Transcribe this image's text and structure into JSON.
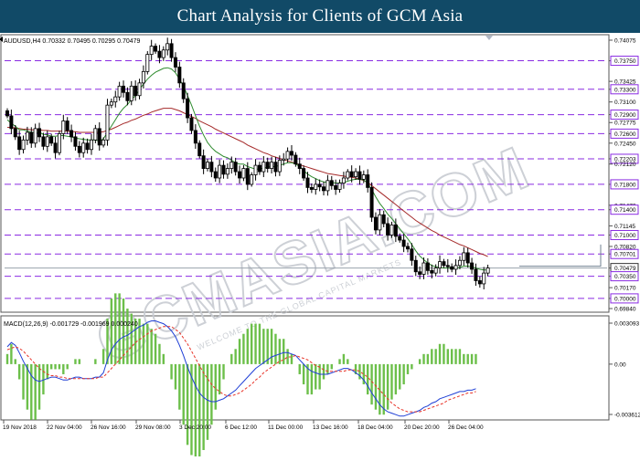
{
  "banner": {
    "title": "Chart Analysis for Clients of GCM Asia"
  },
  "watermark": {
    "text": "GCMASIA.COM",
    "subtext": "WELCOME TO THE GLOBAL CAPITAL MARKETS"
  },
  "chart_data": [
    {
      "type": "candlestick",
      "symbol_header": "AUDUSD,H4  0.70332 0.70495 0.70295 0.70479",
      "ylim": [
        0.6984,
        0.74075
      ],
      "y_tick_labels": [
        "0.74075",
        "0.73750",
        "0.73425",
        "0.73300",
        "0.73100",
        "0.72900",
        "0.72775",
        "0.72600",
        "0.72450",
        "0.72203",
        "0.72120",
        "0.71800",
        "0.71470",
        "0.71400",
        "0.71145",
        "0.71000",
        "0.70820",
        "0.70701",
        "0.70479",
        "0.70350",
        "0.70170",
        "0.70000",
        "0.69840"
      ],
      "highlight_levels": [
        0.7375,
        0.733,
        0.729,
        0.726,
        0.72203,
        0.718,
        0.714,
        0.71,
        0.70701,
        0.7035,
        0.7
      ],
      "current_price": 0.70479,
      "x_tick_labels": [
        "19 Nov 2018",
        "22 Nov 04:00",
        "26 Nov 16:00",
        "29 Nov 08:00",
        "3 Dec 20:00",
        "6 Dec 12:00",
        "11 Dec 00:00",
        "13 Dec 16:00",
        "18 Dec 04:00",
        "20 Dec 20:00",
        "26 Dec 04:00"
      ],
      "close_path": [
        0.7288,
        0.7268,
        0.7255,
        0.7235,
        0.725,
        0.7262,
        0.7245,
        0.7268,
        0.7255,
        0.724,
        0.7255,
        0.7245,
        0.723,
        0.726,
        0.728,
        0.7265,
        0.7255,
        0.724,
        0.723,
        0.7245,
        0.7235,
        0.725,
        0.7268,
        0.7242,
        0.725,
        0.7305,
        0.731,
        0.7318,
        0.7335,
        0.7325,
        0.7312,
        0.7335,
        0.732,
        0.734,
        0.7358,
        0.7385,
        0.7398,
        0.739,
        0.738,
        0.7392,
        0.7402,
        0.738,
        0.7365,
        0.734,
        0.7315,
        0.7285,
        0.7265,
        0.7245,
        0.7225,
        0.7205,
        0.7215,
        0.72,
        0.719,
        0.721,
        0.7196,
        0.7205,
        0.7215,
        0.72,
        0.719,
        0.7205,
        0.718,
        0.7195,
        0.721,
        0.72,
        0.7215,
        0.7205,
        0.7215,
        0.72,
        0.7218,
        0.722,
        0.7232,
        0.7226,
        0.7212,
        0.7205,
        0.719,
        0.7175,
        0.7172,
        0.718,
        0.7176,
        0.717,
        0.7186,
        0.7178,
        0.7172,
        0.7182,
        0.719,
        0.72,
        0.7192,
        0.72,
        0.7188,
        0.7195,
        0.7175,
        0.7128,
        0.7108,
        0.7132,
        0.7118,
        0.71,
        0.7116,
        0.7098,
        0.7092,
        0.7082,
        0.7078,
        0.706,
        0.7042,
        0.7038,
        0.7056,
        0.7044,
        0.704,
        0.7048,
        0.7058,
        0.7052,
        0.705,
        0.7046,
        0.7052,
        0.706,
        0.7072,
        0.7056,
        0.7046,
        0.7028,
        0.7023,
        0.704,
        0.7048
      ],
      "ma_fast": [
        0.7282,
        0.7276,
        0.7272,
        0.7266,
        0.7266,
        0.7264,
        0.7262,
        0.7262,
        0.7262,
        0.7259,
        0.7258,
        0.7256,
        0.7256,
        0.7257,
        0.7257,
        0.7256,
        0.7255,
        0.7253,
        0.7252,
        0.7251,
        0.725,
        0.725,
        0.725,
        0.7248,
        0.7252,
        0.7262,
        0.7272,
        0.7282,
        0.7292,
        0.73,
        0.7306,
        0.7314,
        0.732,
        0.733,
        0.7338,
        0.7346,
        0.7352,
        0.7357,
        0.736,
        0.7363,
        0.7364,
        0.7362,
        0.7356,
        0.7346,
        0.7335,
        0.732,
        0.7305,
        0.7288,
        0.7272,
        0.7258,
        0.7246,
        0.7238,
        0.7232,
        0.7228,
        0.7224,
        0.7222,
        0.7218,
        0.7214,
        0.7212,
        0.7212,
        0.7208,
        0.7206,
        0.7204,
        0.7204,
        0.7206,
        0.7207,
        0.7208,
        0.7208,
        0.721,
        0.7212,
        0.7214,
        0.7214,
        0.7212,
        0.7208,
        0.7202,
        0.7196,
        0.7192,
        0.7189,
        0.7186,
        0.7184,
        0.7183,
        0.7183,
        0.7182,
        0.7182,
        0.7183,
        0.7185,
        0.7187,
        0.7188,
        0.7188,
        0.7187,
        0.7182,
        0.7172,
        0.716,
        0.715,
        0.7142,
        0.7133,
        0.7126,
        0.7118,
        0.711,
        0.7102,
        0.7094,
        0.7085,
        0.7075,
        0.7067,
        0.7061,
        0.7056,
        0.7052,
        0.705,
        0.7049,
        0.7048,
        0.7048,
        0.7048,
        0.7048,
        0.7049,
        0.7051,
        0.7051,
        0.705,
        0.7048,
        0.7046,
        0.7045,
        0.7045
      ],
      "ma_slow": [
        0.727,
        0.727,
        0.7269,
        0.7268,
        0.7267,
        0.7267,
        0.7266,
        0.7266,
        0.7266,
        0.7265,
        0.7265,
        0.7264,
        0.7264,
        0.7264,
        0.7264,
        0.7264,
        0.7263,
        0.7263,
        0.7262,
        0.7262,
        0.7262,
        0.7262,
        0.7262,
        0.7262,
        0.7263,
        0.7265,
        0.7267,
        0.727,
        0.7273,
        0.7276,
        0.7278,
        0.7281,
        0.7283,
        0.7286,
        0.7289,
        0.7291,
        0.7294,
        0.7296,
        0.7298,
        0.73,
        0.73,
        0.73,
        0.7298,
        0.7296,
        0.7293,
        0.729,
        0.7287,
        0.7284,
        0.728,
        0.7277,
        0.7274,
        0.7271,
        0.7267,
        0.7264,
        0.7261,
        0.7258,
        0.7255,
        0.7252,
        0.7249,
        0.7246,
        0.7242,
        0.7239,
        0.7236,
        0.7233,
        0.723,
        0.7228,
        0.7225,
        0.7223,
        0.7221,
        0.7219,
        0.7217,
        0.7215,
        0.7213,
        0.7211,
        0.7209,
        0.7207,
        0.7205,
        0.7203,
        0.7201,
        0.7199,
        0.7197,
        0.7196,
        0.7195,
        0.7194,
        0.7193,
        0.7192,
        0.7191,
        0.719,
        0.7188,
        0.7186,
        0.7183,
        0.7178,
        0.7173,
        0.7168,
        0.7163,
        0.7158,
        0.7153,
        0.7148,
        0.7143,
        0.7138,
        0.7133,
        0.7128,
        0.7123,
        0.7119,
        0.7115,
        0.7111,
        0.7107,
        0.7104,
        0.71,
        0.7097,
        0.7094,
        0.7091,
        0.7088,
        0.7085,
        0.7083,
        0.708,
        0.7077,
        0.7074,
        0.7071,
        0.7069,
        0.7066
      ],
      "trendline": {
        "x_start": "26 Dec 04:00",
        "level_start": 0.70479,
        "level_end": 0.70479,
        "rise_to": 0.7085
      }
    },
    {
      "type": "macd",
      "label": "MACD(12,26,9) -0.001729 -0.001969 0.000240",
      "ylim": [
        -0.003612,
        0.003093
      ],
      "y_tick_labels": [
        "0.003093",
        "0.00",
        "-0.003612"
      ],
      "macd": [
        0.0012,
        0.0015,
        0.0013,
        0.0008,
        0.0002,
        -0.0003,
        -0.0008,
        -0.0011,
        -0.0012,
        -0.0011,
        -0.001,
        -0.0009,
        -0.0009,
        -0.001,
        -0.0011,
        -0.0011,
        -0.001,
        -0.0009,
        -0.0009,
        -0.001,
        -0.001,
        -0.001,
        -0.0009,
        -0.0009,
        -0.0006,
        0.0003,
        0.001,
        0.0014,
        0.0017,
        0.0019,
        0.002,
        0.0022,
        0.0024,
        0.0026,
        0.0027,
        0.0029,
        0.003,
        0.003,
        0.0029,
        0.0028,
        0.0026,
        0.0023,
        0.0019,
        0.0013,
        0.0006,
        -0.0002,
        -0.0009,
        -0.0015,
        -0.002,
        -0.0023,
        -0.0025,
        -0.0026,
        -0.0026,
        -0.0025,
        -0.0024,
        -0.0022,
        -0.002,
        -0.0018,
        -0.0015,
        -0.0012,
        -0.0009,
        -0.0006,
        -0.0003,
        -0.0001,
        0.0001,
        0.0003,
        0.0005,
        0.0006,
        0.0007,
        0.0008,
        0.0008,
        0.0007,
        0.0006,
        0.0003,
        0.0,
        -0.0003,
        -0.0005,
        -0.0006,
        -0.0007,
        -0.0007,
        -0.0007,
        -0.0006,
        -0.0005,
        -0.0004,
        -0.0003,
        -0.0003,
        -0.0004,
        -0.0006,
        -0.0008,
        -0.0011,
        -0.0015,
        -0.002,
        -0.0024,
        -0.0028,
        -0.0031,
        -0.0033,
        -0.0034,
        -0.0035,
        -0.0036,
        -0.0036,
        -0.0035,
        -0.0034,
        -0.0033,
        -0.0032,
        -0.003,
        -0.0029,
        -0.0027,
        -0.0026,
        -0.0024,
        -0.0023,
        -0.0022,
        -0.0021,
        -0.002,
        -0.0019,
        -0.0019,
        -0.0018,
        -0.0018,
        -0.0017
      ],
      "signal": [
        0.001,
        0.0011,
        0.0012,
        0.0011,
        0.0009,
        0.0006,
        0.0003,
        0.0,
        -0.0003,
        -0.0005,
        -0.0007,
        -0.0008,
        -0.0008,
        -0.0009,
        -0.0009,
        -0.001,
        -0.001,
        -0.001,
        -0.001,
        -0.001,
        -0.001,
        -0.001,
        -0.001,
        -0.0009,
        -0.0009,
        -0.0006,
        -0.0003,
        0.0,
        0.0003,
        0.0006,
        0.0009,
        0.0012,
        0.0015,
        0.0017,
        0.0019,
        0.0021,
        0.0023,
        0.0024,
        0.0025,
        0.0026,
        0.0026,
        0.0026,
        0.0024,
        0.0022,
        0.0018,
        0.0014,
        0.0009,
        0.0004,
        -0.0001,
        -0.0006,
        -0.001,
        -0.0014,
        -0.0017,
        -0.0019,
        -0.0021,
        -0.0022,
        -0.0022,
        -0.0021,
        -0.002,
        -0.0018,
        -0.0016,
        -0.0014,
        -0.0011,
        -0.0009,
        -0.0006,
        -0.0004,
        -0.0002,
        0.0,
        0.0002,
        0.0003,
        0.0005,
        0.0005,
        0.0006,
        0.0005,
        0.0004,
        0.0003,
        0.0001,
        -0.0001,
        -0.0002,
        -0.0004,
        -0.0005,
        -0.0005,
        -0.0005,
        -0.0005,
        -0.0005,
        -0.0004,
        -0.0004,
        -0.0004,
        -0.0005,
        -0.0007,
        -0.0009,
        -0.0012,
        -0.0015,
        -0.0018,
        -0.0021,
        -0.0024,
        -0.0027,
        -0.0029,
        -0.0031,
        -0.0032,
        -0.0033,
        -0.0033,
        -0.0033,
        -0.0033,
        -0.0032,
        -0.0031,
        -0.003,
        -0.0029,
        -0.0028,
        -0.0027,
        -0.0025,
        -0.0024,
        -0.0023,
        -0.0022,
        -0.0021,
        -0.002,
        -0.002,
        -0.0019
      ]
    }
  ],
  "colors": {
    "banner": "#114a67",
    "level_line": "#8a2be2",
    "ma_fast": "#2e8b2e",
    "ma_slow": "#a52a2a",
    "macd_line": "#1f3fd6",
    "signal_line": "#e8352a",
    "histogram": "#6cbf4a",
    "candle": "#000000",
    "trendline": "#708090"
  }
}
